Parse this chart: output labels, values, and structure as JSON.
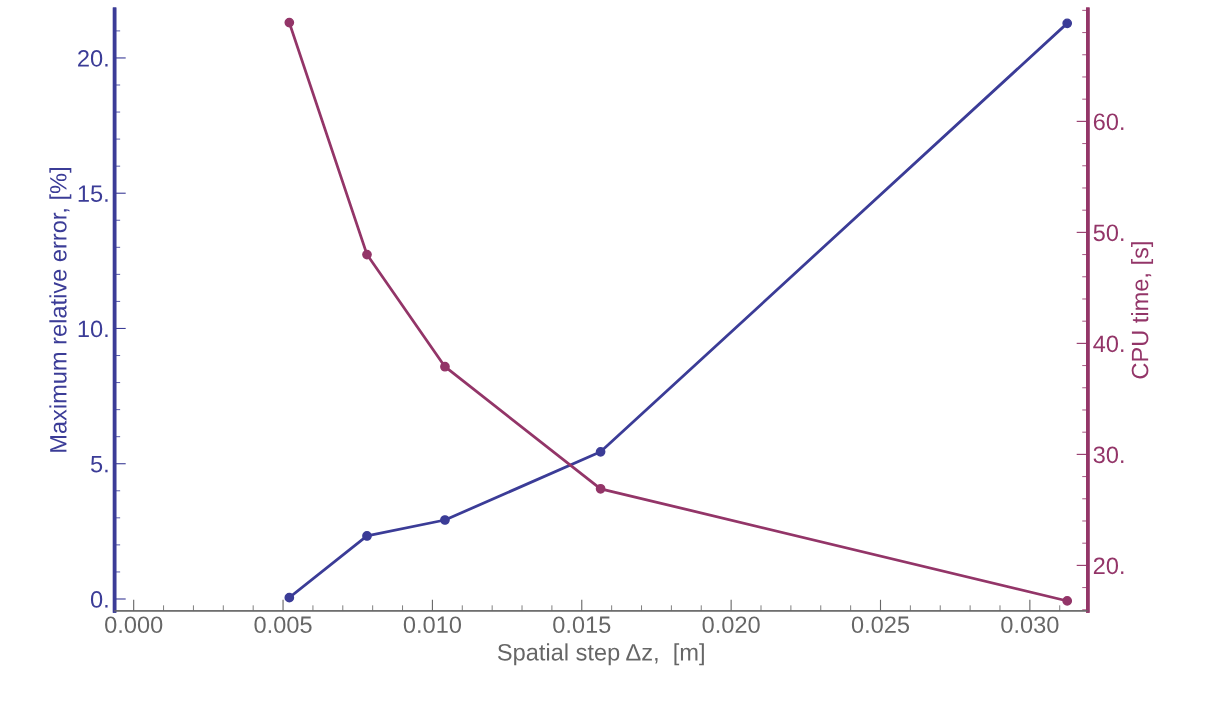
{
  "chart_data": {
    "type": "line",
    "xlabel": "Spatial step Δz,  [m]",
    "ylabel": "Maximum relative error, [%]",
    "y2label": "CPU time, [s]",
    "x": [
      0.00521,
      0.00781,
      0.01042,
      0.01563,
      0.03125
    ],
    "series": [
      {
        "color": "#3b3c97",
        "values": [
          0.05,
          2.33,
          2.92,
          5.44,
          21.28
        ]
      },
      {
        "color": "#933568",
        "axis": "y2",
        "values": [
          68.9,
          48.0,
          37.9,
          26.9,
          16.8
        ]
      }
    ],
    "xlim": [
      -0.00064,
      0.03194
    ],
    "ylim": [
      -0.44,
      21.8
    ],
    "y2lim": [
      15.9,
      70.1
    ],
    "xticks": [
      {
        "value": 0,
        "label": "0.000"
      },
      {
        "value": 0.005,
        "label": "0.005"
      },
      {
        "value": 0.01,
        "label": "0.010"
      },
      {
        "value": 0.015,
        "label": "0.015"
      },
      {
        "value": 0.02,
        "label": "0.020"
      },
      {
        "value": 0.025,
        "label": "0.025"
      },
      {
        "value": 0.03,
        "label": "0.030"
      }
    ],
    "yticks": [
      {
        "value": 0,
        "label": "0."
      },
      {
        "value": 5,
        "label": "5."
      },
      {
        "value": 10,
        "label": "10."
      },
      {
        "value": 15,
        "label": "15."
      },
      {
        "value": 20,
        "label": "20."
      }
    ],
    "y2ticks": [
      {
        "value": 20,
        "label": "20."
      },
      {
        "value": 30,
        "label": "30."
      },
      {
        "value": 40,
        "label": "40."
      },
      {
        "value": 50,
        "label": "50."
      },
      {
        "value": 60,
        "label": "60."
      }
    ],
    "marker": "circle",
    "line_style": "solid"
  }
}
